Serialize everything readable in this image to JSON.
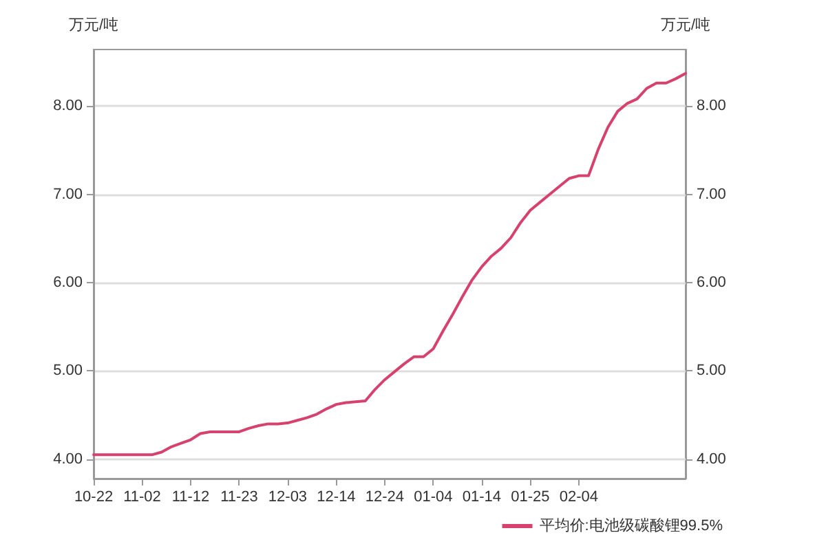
{
  "chart_data": {
    "type": "line",
    "ylabel": "万元/吨",
    "y2label": "万元/吨",
    "categories": [
      "10-22",
      null,
      null,
      null,
      null,
      "11-02",
      null,
      null,
      null,
      null,
      "11-12",
      null,
      null,
      null,
      null,
      "11-23",
      null,
      null,
      null,
      null,
      "12-03",
      null,
      null,
      null,
      null,
      "12-14",
      null,
      null,
      null,
      null,
      "12-24",
      null,
      null,
      null,
      null,
      "01-04",
      null,
      null,
      null,
      null,
      "01-14",
      null,
      null,
      null,
      null,
      "01-25",
      null,
      null,
      null,
      null,
      "02-04",
      null,
      null,
      null,
      null,
      null,
      null,
      null,
      null,
      null,
      null,
      null
    ],
    "series": [
      {
        "name": "平均价:电池级碳酸锂99.5%",
        "color": "#d6426e",
        "values": [
          4.05,
          4.05,
          4.05,
          4.05,
          4.05,
          4.05,
          4.05,
          4.08,
          4.14,
          4.18,
          4.22,
          4.29,
          4.31,
          4.31,
          4.31,
          4.31,
          4.35,
          4.38,
          4.4,
          4.4,
          4.41,
          4.44,
          4.47,
          4.51,
          4.57,
          4.62,
          4.64,
          4.65,
          4.66,
          4.79,
          4.9,
          4.99,
          5.08,
          5.16,
          5.16,
          5.25,
          5.45,
          5.64,
          5.84,
          6.03,
          6.18,
          6.3,
          6.39,
          6.51,
          6.68,
          6.82,
          6.91,
          7.0,
          7.09,
          7.18,
          7.21,
          7.21,
          7.51,
          7.76,
          7.94,
          8.03,
          8.08,
          8.2,
          8.26,
          8.26,
          8.31,
          8.37
        ]
      }
    ],
    "ylim": [
      3.78,
      8.64
    ],
    "yticks": [
      {
        "value": 4,
        "label": "4.00"
      },
      {
        "value": 5,
        "label": "5.00"
      },
      {
        "value": 6,
        "label": "6.00"
      },
      {
        "value": 7,
        "label": "7.00"
      },
      {
        "value": 8,
        "label": "8.00"
      }
    ],
    "y2lim": [
      3.78,
      8.64
    ],
    "y2ticks": [
      {
        "value": 4,
        "label": "4.00"
      },
      {
        "value": 5,
        "label": "5.00"
      },
      {
        "value": 6,
        "label": "6.00"
      },
      {
        "value": 7,
        "label": "7.00"
      },
      {
        "value": 8,
        "label": "8.00"
      }
    ],
    "grid": "y",
    "legend": "bottom right",
    "marker": "none",
    "line_style": "solid"
  }
}
